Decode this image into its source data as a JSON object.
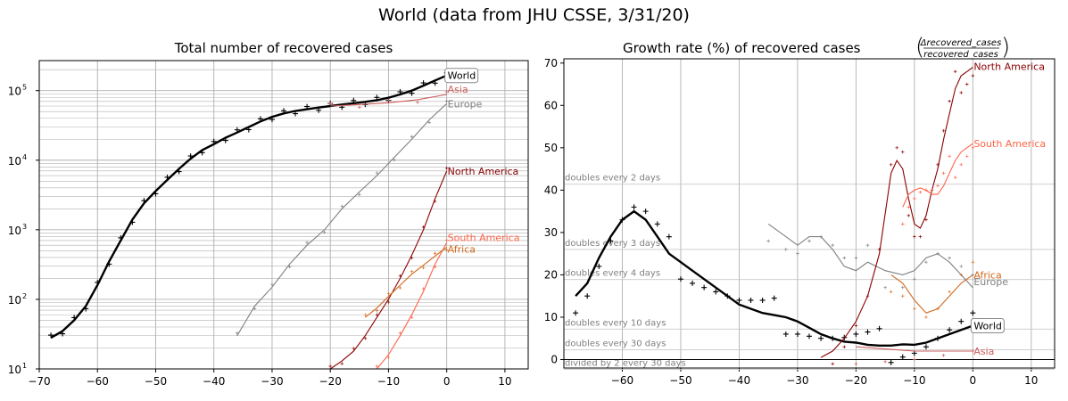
{
  "suptitle": "World (data from JHU CSSE, 3/31/20)",
  "colors": {
    "World": "#000000",
    "Asia": "#cd5c5c",
    "Europe": "#808080",
    "North America": "#8b0000",
    "South America": "#ff6347",
    "Africa": "#d2691e"
  },
  "chart_data": [
    {
      "type": "line",
      "title": "Total number of recovered cases",
      "xlabel": "",
      "ylabel": "",
      "xlim": [
        -70,
        14
      ],
      "ylim": [
        10,
        270000
      ],
      "yscale": "log",
      "grid": "both (major and minor y)",
      "xticks": [
        "−70",
        "−60",
        "−50",
        "−40",
        "−30",
        "−20",
        "−10",
        "0",
        "10"
      ],
      "yticks": [
        "10",
        "10",
        "10",
        "10",
        "10"
      ],
      "yticks_exp": [
        "1",
        "2",
        "3",
        "4",
        "5"
      ],
      "series": [
        {
          "name": "World",
          "x": [
            -68,
            -66,
            -64,
            -62,
            -60,
            -58,
            -56,
            -54,
            -52,
            -50,
            -48,
            -46,
            -44,
            -42,
            -40,
            -38,
            -36,
            -34,
            -32,
            -30,
            -28,
            -26,
            -24,
            -22,
            -20,
            -18,
            -16,
            -14,
            -12,
            -10,
            -8,
            -6,
            -4,
            -2,
            0
          ],
          "y": [
            28,
            35,
            50,
            80,
            160,
            350,
            700,
            1400,
            2400,
            3600,
            5200,
            7500,
            10500,
            14000,
            17000,
            21000,
            25000,
            30000,
            36000,
            42000,
            47000,
            51000,
            54000,
            57000,
            60000,
            63000,
            66000,
            69000,
            73000,
            79000,
            88000,
            100000,
            118000,
            140000,
            165000
          ]
        },
        {
          "name": "Asia",
          "x": [
            -20,
            -15,
            -10,
            -5,
            0
          ],
          "y": [
            60000,
            63000,
            67000,
            74000,
            88000
          ]
        },
        {
          "name": "Europe",
          "x": [
            -36,
            -33,
            -30,
            -27,
            -24,
            -21,
            -18,
            -15,
            -12,
            -9,
            -6,
            -3,
            0
          ],
          "y": [
            30,
            80,
            150,
            320,
            600,
            1000,
            2000,
            3500,
            6000,
            11000,
            20000,
            38000,
            65000
          ]
        },
        {
          "name": "North America",
          "x": [
            -20,
            -18,
            -16,
            -14,
            -12,
            -10,
            -8,
            -6,
            -4,
            -2,
            0
          ],
          "y": [
            10,
            13,
            18,
            30,
            55,
            100,
            200,
            430,
            1000,
            2800,
            7000
          ]
        },
        {
          "name": "South America",
          "x": [
            -12,
            -10,
            -8,
            -6,
            -4,
            -2,
            0
          ],
          "y": [
            10,
            16,
            30,
            60,
            130,
            320,
            650
          ]
        },
        {
          "name": "Africa",
          "x": [
            -14,
            -12,
            -10,
            -8,
            -6,
            -4,
            -2,
            0
          ],
          "y": [
            55,
            75,
            110,
            160,
            230,
            310,
            420,
            560
          ]
        }
      ],
      "labels": [
        "World",
        "Asia",
        "Europe",
        "North America",
        "South America",
        "Africa"
      ]
    },
    {
      "type": "line",
      "title": "Growth rate (%) of recovered cases",
      "title_numerator": "Δrecovered_cases",
      "title_denominator": "recovered_cases",
      "xlabel": "",
      "ylabel": "",
      "xlim": [
        -70,
        14
      ],
      "ylim": [
        -2,
        71
      ],
      "grid": "x major; y at doubling-time levels",
      "xticks": [
        "−60",
        "−50",
        "−40",
        "−30",
        "−20",
        "−10",
        "0",
        "10"
      ],
      "yticks": [
        "0",
        "10",
        "20",
        "30",
        "40",
        "50",
        "60",
        "70"
      ],
      "reference_lines": [
        {
          "label": "doubles every 2 days",
          "y": 41.4
        },
        {
          "label": "doubles every 3 days",
          "y": 26.0
        },
        {
          "label": "doubles every 4 days",
          "y": 18.9
        },
        {
          "label": "doubles every 10 days",
          "y": 7.2
        },
        {
          "label": "doubles every 30 days",
          "y": 2.3
        },
        {
          "label": "divided by 2 every 30 days",
          "y": -2.3
        }
      ],
      "series": [
        {
          "name": "World",
          "x": [
            -68,
            -66,
            -64,
            -62,
            -60,
            -58,
            -56,
            -54,
            -52,
            -50,
            -48,
            -46,
            -44,
            -42,
            -40,
            -38,
            -36,
            -34,
            -32,
            -30,
            -28,
            -26,
            -24,
            -22,
            -20,
            -18,
            -16,
            -14,
            -12,
            -10,
            -8,
            -6,
            -4,
            -2,
            0
          ],
          "y": [
            15,
            18,
            24,
            29,
            33,
            35,
            33,
            29,
            25,
            23,
            21,
            19,
            17,
            15,
            13,
            12,
            11,
            10.5,
            10,
            9,
            7.5,
            6,
            5,
            4.2,
            4,
            3.5,
            3.3,
            3.3,
            3.6,
            3.5,
            4,
            5,
            6,
            7,
            8
          ]
        },
        {
          "name": "Asia",
          "x": [
            -20,
            -15,
            -10,
            -5,
            0
          ],
          "y": [
            3,
            2.5,
            2,
            2,
            2
          ]
        },
        {
          "name": "Europe",
          "x": [
            -35,
            -32,
            -30,
            -28,
            -26,
            -24,
            -22,
            -20,
            -18,
            -15,
            -12,
            -10,
            -8,
            -6,
            -4,
            -2,
            0
          ],
          "y": [
            32,
            29,
            27,
            29,
            29,
            26,
            22,
            21,
            23,
            21,
            20,
            21,
            24,
            25,
            23,
            20,
            17
          ]
        },
        {
          "name": "North America",
          "x": [
            -26,
            -24,
            -22,
            -20,
            -18,
            -16,
            -14,
            -13,
            -12,
            -11,
            -10,
            -9,
            -8,
            -7,
            -6,
            -5,
            -4,
            -3,
            -2,
            -1,
            0
          ],
          "y": [
            0.5,
            2,
            5,
            9,
            15,
            25,
            44,
            47,
            45,
            38,
            32,
            31,
            34,
            40,
            45,
            52,
            58,
            64,
            67,
            68,
            69
          ]
        },
        {
          "name": "South America",
          "x": [
            -12,
            -11,
            -10,
            -9,
            -8,
            -7,
            -6,
            -5,
            -4,
            -3,
            -2,
            -1,
            0
          ],
          "y": [
            36,
            39,
            40,
            40.5,
            40,
            39,
            39,
            41,
            44,
            47,
            49,
            50,
            51
          ]
        },
        {
          "name": "Africa",
          "x": [
            -14,
            -12,
            -10,
            -8,
            -6,
            -4,
            -2,
            0
          ],
          "y": [
            20,
            18,
            14,
            11,
            12,
            15,
            18,
            20
          ]
        }
      ],
      "labels": [
        "North America",
        "South America",
        "Africa",
        "Europe",
        "World",
        "Asia"
      ]
    }
  ]
}
